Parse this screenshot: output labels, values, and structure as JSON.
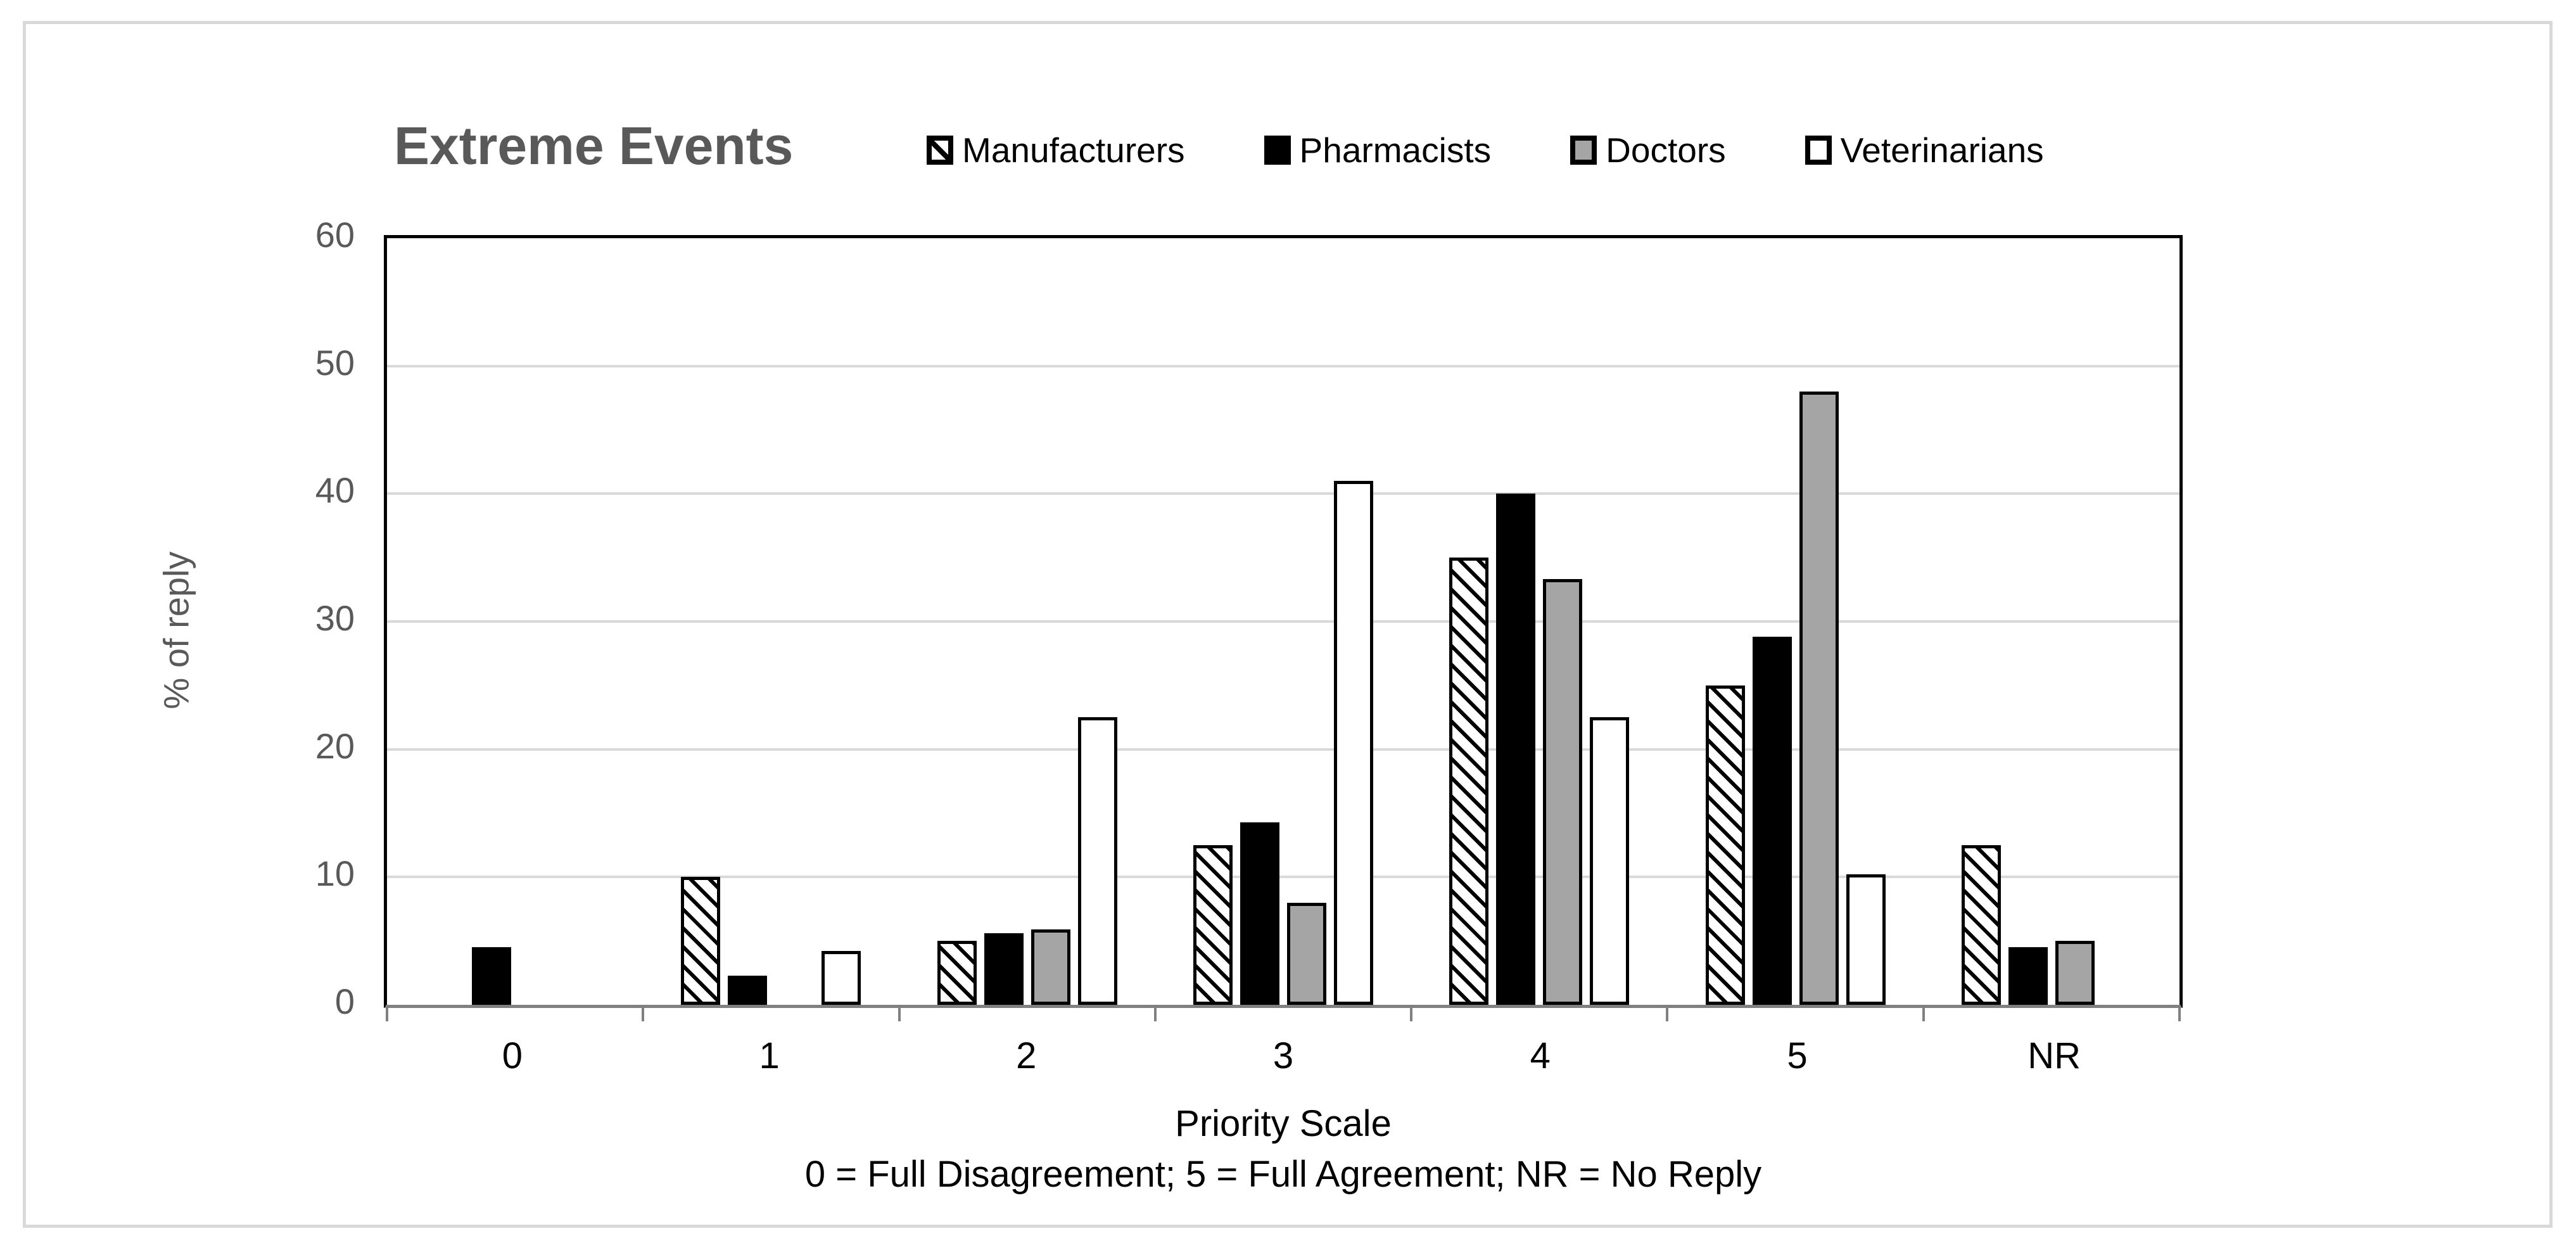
{
  "title": "Extreme Events",
  "chart_data": {
    "type": "bar",
    "title": "Extreme Events",
    "categories": [
      "0",
      "1",
      "2",
      "3",
      "4",
      "5",
      "NR"
    ],
    "series": [
      {
        "name": "Manufacturers",
        "style": "hatch",
        "pattern": "diagonal-hatch",
        "color": "#000000",
        "values": [
          0,
          10,
          5,
          12.5,
          35,
          25,
          12.5
        ]
      },
      {
        "name": "Pharmacists",
        "style": "black",
        "pattern": "solid",
        "color": "#000000",
        "values": [
          4.5,
          2.3,
          5.6,
          14.3,
          40,
          28.8,
          4.5
        ]
      },
      {
        "name": "Doctors",
        "style": "gray",
        "pattern": "solid",
        "color": "#a5a5a5",
        "values": [
          0,
          0,
          5.9,
          8,
          33.3,
          48,
          5
        ]
      },
      {
        "name": "Veterinarians",
        "style": "white",
        "pattern": "outline",
        "color": "#ffffff",
        "values": [
          0,
          4.2,
          22.5,
          41,
          22.5,
          10.2,
          0
        ]
      }
    ],
    "xlabel": "Priority Scale",
    "x_caption": "0 = Full Disagreement; 5 = Full Agreement; NR = No Reply",
    "ylabel": "% of reply",
    "ylim": [
      0,
      60
    ],
    "yticks": [
      0,
      10,
      20,
      30,
      40,
      50,
      60
    ],
    "grid": "horizontal",
    "legend_position": "top"
  },
  "colors": {
    "title_text": "#595959",
    "y_axis_text": "#595959",
    "x_axis_text": "#000000",
    "gridline": "#d9d9d9",
    "plot_border": "#000000",
    "axis_line": "#808080",
    "outer_frame": "#d9d9d9",
    "series_gray": "#a5a5a5",
    "series_black": "#000000",
    "series_white": "#ffffff"
  }
}
